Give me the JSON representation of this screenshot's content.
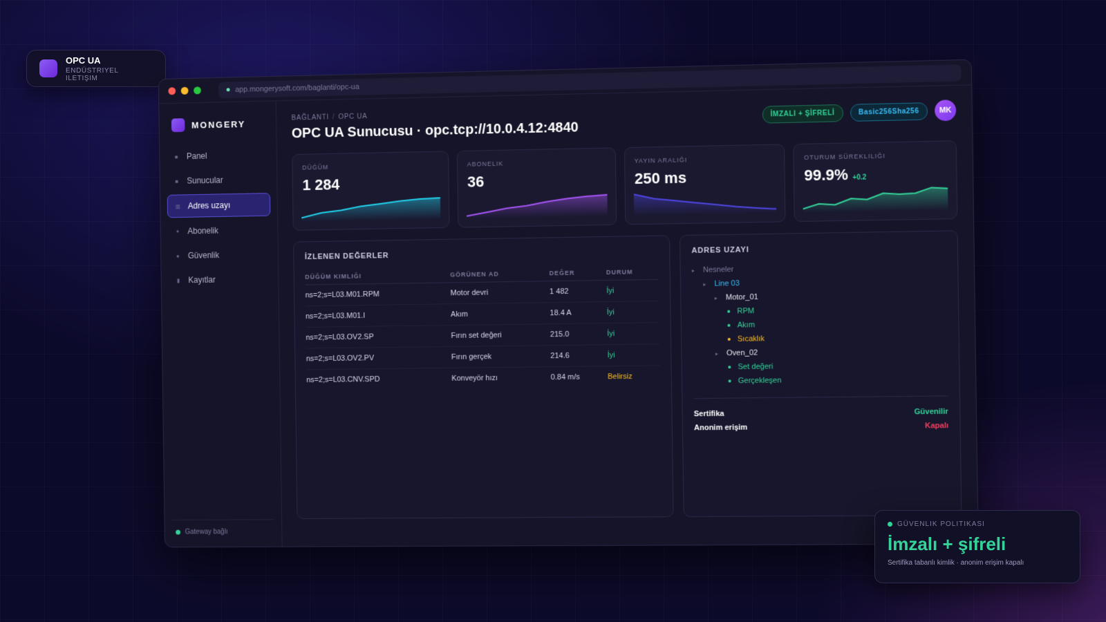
{
  "brand_chip": {
    "title": "OPC UA",
    "subtitle": "ENDÜSTRIYEL ILETIŞIM"
  },
  "browser": {
    "url": "app.mongerysoft.com/baglanti/opc-ua"
  },
  "sidebar": {
    "logo": "MONGERY",
    "items": [
      {
        "label": "Panel",
        "icon": "square-icon",
        "active": false
      },
      {
        "label": "Sunucular",
        "icon": "server-icon",
        "active": false
      },
      {
        "label": "Adres uzayı",
        "icon": "tree-icon",
        "active": true
      },
      {
        "label": "Abonelik",
        "icon": "sparkle-icon",
        "active": false
      },
      {
        "label": "Güvenlik",
        "icon": "shield-icon",
        "active": false
      },
      {
        "label": "Kayıtlar",
        "icon": "log-icon",
        "active": false
      }
    ],
    "footer": "Gateway bağlı"
  },
  "header": {
    "breadcrumb": [
      "BAĞLANTI",
      "OPC UA"
    ],
    "title": "OPC UA Sunucusu · opc.tcp://10.0.4.12:4840",
    "badge_security": "İMZALI + ŞİFRELİ",
    "badge_policy": "Basic256Sha256",
    "avatar": "MK"
  },
  "kpis": [
    {
      "label": "DÜĞÜM",
      "value": "1 284",
      "color": "#22d3ee",
      "trend": [
        0.1,
        0.3,
        0.4,
        0.55,
        0.65,
        0.75,
        0.82,
        0.85
      ]
    },
    {
      "label": "ABONELIK",
      "value": "36",
      "color": "#a855f7",
      "trend": [
        0.05,
        0.2,
        0.35,
        0.45,
        0.6,
        0.72,
        0.8,
        0.85
      ]
    },
    {
      "label": "YAYIN ARALIĞI",
      "value": "250 ms",
      "color": "#4f46e5",
      "trend": [
        0.85,
        0.65,
        0.55,
        0.45,
        0.35,
        0.25,
        0.18,
        0.12
      ]
    },
    {
      "label": "OTURUM SÜREKLILIĞI",
      "value": "99.9%",
      "delta": "+0.2",
      "color": "#34d399",
      "trend": [
        0.1,
        0.3,
        0.25,
        0.5,
        0.45,
        0.7,
        0.65,
        0.68,
        0.9,
        0.85
      ]
    }
  ],
  "monitored": {
    "title": "İZLENEN DEĞERLER",
    "columns": [
      "DÜĞÜM KIMLIĞI",
      "GÖRÜNEN AD",
      "DEĞER",
      "DURUM"
    ],
    "rows": [
      {
        "id": "ns=2;s=L03.M01.RPM",
        "name": "Motor devri",
        "value": "1 482",
        "status": "İyi",
        "ok": true
      },
      {
        "id": "ns=2;s=L03.M01.I",
        "name": "Akım",
        "value": "18.4 A",
        "status": "İyi",
        "ok": true
      },
      {
        "id": "ns=2;s=L03.OV2.SP",
        "name": "Fırın set değeri",
        "value": "215.0",
        "status": "İyi",
        "ok": true
      },
      {
        "id": "ns=2;s=L03.OV2.PV",
        "name": "Fırın gerçek",
        "value": "214.6",
        "status": "İyi",
        "ok": true
      },
      {
        "id": "ns=2;s=L03.CNV.SPD",
        "name": "Konveyör hızı",
        "value": "0.84 m/s",
        "status": "Belirsiz",
        "ok": false
      }
    ]
  },
  "address_space": {
    "title": "ADRES UZAYI",
    "tree": [
      {
        "label": "Nesneler",
        "depth": 0,
        "kind": "folder",
        "color": "#7e7a9c"
      },
      {
        "label": "Line 03",
        "depth": 1,
        "kind": "folder",
        "color": "#38bdf8"
      },
      {
        "label": "Motor_01",
        "depth": 2,
        "kind": "folder",
        "color": "#e6e6f0"
      },
      {
        "label": "RPM",
        "depth": 3,
        "kind": "var",
        "color": "#34d399"
      },
      {
        "label": "Akım",
        "depth": 3,
        "kind": "var",
        "color": "#34d399"
      },
      {
        "label": "Sıcaklık",
        "depth": 3,
        "kind": "var-warn",
        "color": "#fbbf24"
      },
      {
        "label": "Oven_02",
        "depth": 2,
        "kind": "folder",
        "color": "#e6e6f0"
      },
      {
        "label": "Set değeri",
        "depth": 3,
        "kind": "var",
        "color": "#34d399"
      },
      {
        "label": "Gerçekleşen",
        "depth": 3,
        "kind": "var",
        "color": "#34d399"
      }
    ],
    "props": [
      {
        "key": "Sertifika",
        "value": "Güvenilir",
        "color": "#34d399"
      },
      {
        "key": "Anonim erişim",
        "value": "Kapalı",
        "color": "#f43f5e"
      }
    ]
  },
  "policy_card": {
    "label": "GÜVENLIK POLITIKASI",
    "title": "İmzalı + şifreli",
    "subtitle": "Sertifika tabanlı kimlik · anonim erişim kapalı"
  }
}
